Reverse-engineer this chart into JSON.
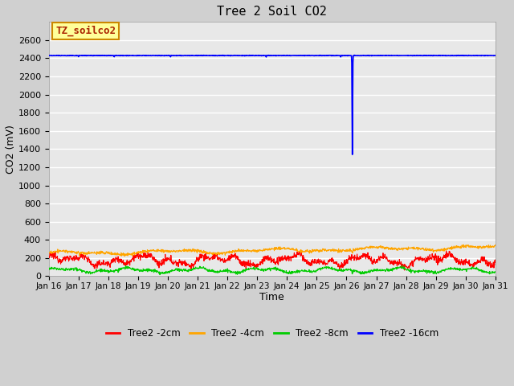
{
  "title": "Tree 2 Soil CO2",
  "xlabel": "Time",
  "ylabel": "CO2 (mV)",
  "ylim": [
    0,
    2800
  ],
  "yticks": [
    0,
    200,
    400,
    600,
    800,
    1000,
    1200,
    1400,
    1600,
    1800,
    2000,
    2200,
    2400,
    2600
  ],
  "fig_bg_color": "#d0d0d0",
  "plot_bg_color": "#e8e8e8",
  "legend_labels": [
    "Tree2 -2cm",
    "Tree2 -4cm",
    "Tree2 -8cm",
    "Tree2 -16cm"
  ],
  "legend_colors": [
    "#ff0000",
    "#ffa500",
    "#00cc00",
    "#0000ff"
  ],
  "annotation_label": "TZ_soilco2",
  "annotation_box_color": "#ffff99",
  "annotation_border_color": "#cc8800",
  "n_points": 1500,
  "dip_day": 10.2
}
